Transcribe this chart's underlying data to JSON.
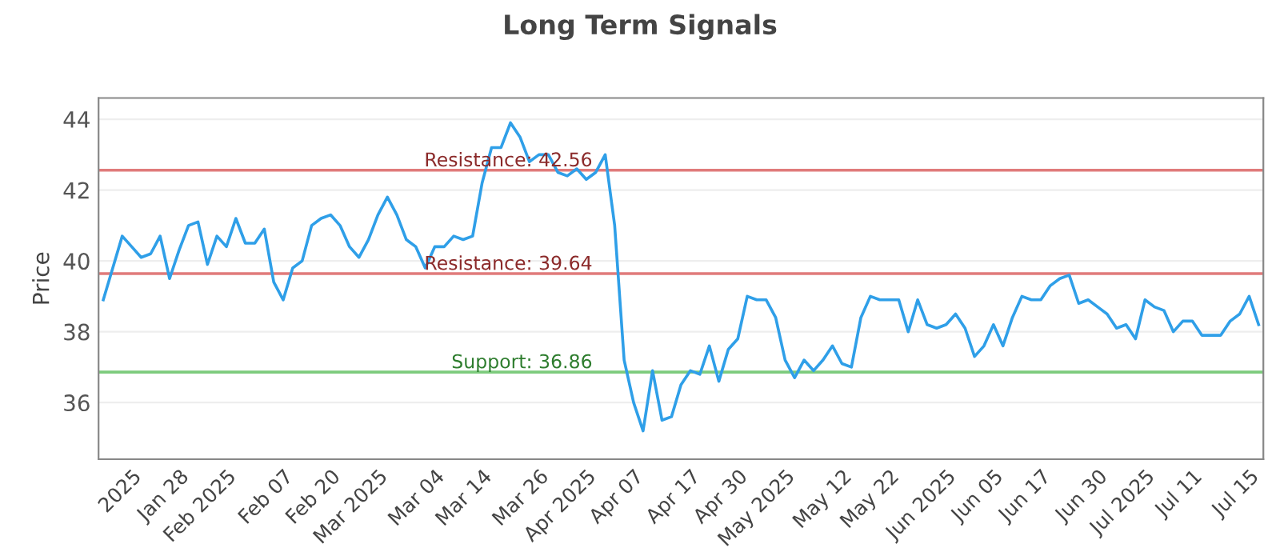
{
  "chart_data": {
    "type": "line",
    "title": "Long Term Signals",
    "ylabel": "Price",
    "categories": [
      null,
      null,
      null,
      "2025",
      null,
      null,
      null,
      null,
      "Jan 28",
      null,
      null,
      null,
      null,
      "Feb 2025",
      null,
      null,
      null,
      null,
      null,
      "Feb 07",
      null,
      null,
      null,
      null,
      "Feb 20",
      null,
      null,
      null,
      null,
      "Mar 2025",
      null,
      null,
      null,
      null,
      null,
      "Mar 04",
      null,
      null,
      null,
      null,
      "Mar 14",
      null,
      null,
      null,
      null,
      null,
      "Mar 26",
      null,
      null,
      null,
      null,
      "Apr 2025",
      null,
      null,
      null,
      null,
      "Apr 07",
      null,
      null,
      null,
      null,
      null,
      "Apr 17",
      null,
      null,
      null,
      null,
      "Apr 30",
      null,
      null,
      null,
      null,
      "May 2025",
      null,
      null,
      null,
      null,
      null,
      "May 12",
      null,
      null,
      null,
      null,
      "May 22",
      null,
      null,
      null,
      null,
      null,
      "Jun 2025",
      null,
      null,
      null,
      null,
      "Jun 05",
      null,
      null,
      null,
      null,
      "Jun 17",
      null,
      null,
      null,
      null,
      null,
      "Jun 30",
      null,
      null,
      null,
      null,
      "Jul 2025",
      null,
      null,
      null,
      null,
      "Jul 11",
      null,
      null,
      null,
      null,
      null,
      "Jul 15",
      null
    ],
    "series": [
      {
        "color": "#2f9fe8",
        "values": [
          38.9,
          39.8,
          40.7,
          40.4,
          40.1,
          40.2,
          40.7,
          39.5,
          40.3,
          41.0,
          41.1,
          39.9,
          40.7,
          40.4,
          41.2,
          40.5,
          40.5,
          40.9,
          39.4,
          38.9,
          39.8,
          40.0,
          41.0,
          41.2,
          41.3,
          41.0,
          40.4,
          40.1,
          40.6,
          41.3,
          41.8,
          41.3,
          40.6,
          40.4,
          39.8,
          40.4,
          40.4,
          40.7,
          40.6,
          40.7,
          42.2,
          43.2,
          43.2,
          43.9,
          43.5,
          42.8,
          43.0,
          43.0,
          42.5,
          42.4,
          42.6,
          42.3,
          42.5,
          43.0,
          41.0,
          37.2,
          36.0,
          35.2,
          36.9,
          35.5,
          35.6,
          36.5,
          36.9,
          36.8,
          37.6,
          36.6,
          37.5,
          37.8,
          39.0,
          38.9,
          38.9,
          38.4,
          37.2,
          36.7,
          37.2,
          36.9,
          37.2,
          37.6,
          37.1,
          37.0,
          38.4,
          39.0,
          38.9,
          38.9,
          38.9,
          38.0,
          38.9,
          38.2,
          38.1,
          38.2,
          38.5,
          38.1,
          37.3,
          37.6,
          38.2,
          37.6,
          38.4,
          39.0,
          38.9,
          38.9,
          39.3,
          39.5,
          39.6,
          38.8,
          38.9,
          38.7,
          38.5,
          38.1,
          38.2,
          37.8,
          38.9,
          38.7,
          38.6,
          38.0,
          38.3,
          38.3,
          37.9,
          37.9,
          37.9,
          38.3,
          38.5,
          39.0,
          38.2
        ]
      }
    ],
    "ylim": [
      34.4,
      44.6
    ],
    "yticks": [
      36,
      38,
      40,
      42,
      44
    ],
    "grid": "y",
    "marker": "none",
    "line_style": "solid",
    "ref_lines": [
      {
        "axis": "y",
        "value": 42.56,
        "label": "Resistance: 42.56",
        "color": "#e07b7b"
      },
      {
        "axis": "y",
        "value": 39.64,
        "label": "Resistance: 39.64",
        "color": "#e07b7b"
      },
      {
        "axis": "y",
        "value": 36.86,
        "label": "Support: 36.86",
        "color": "#7dcb7d"
      }
    ]
  }
}
